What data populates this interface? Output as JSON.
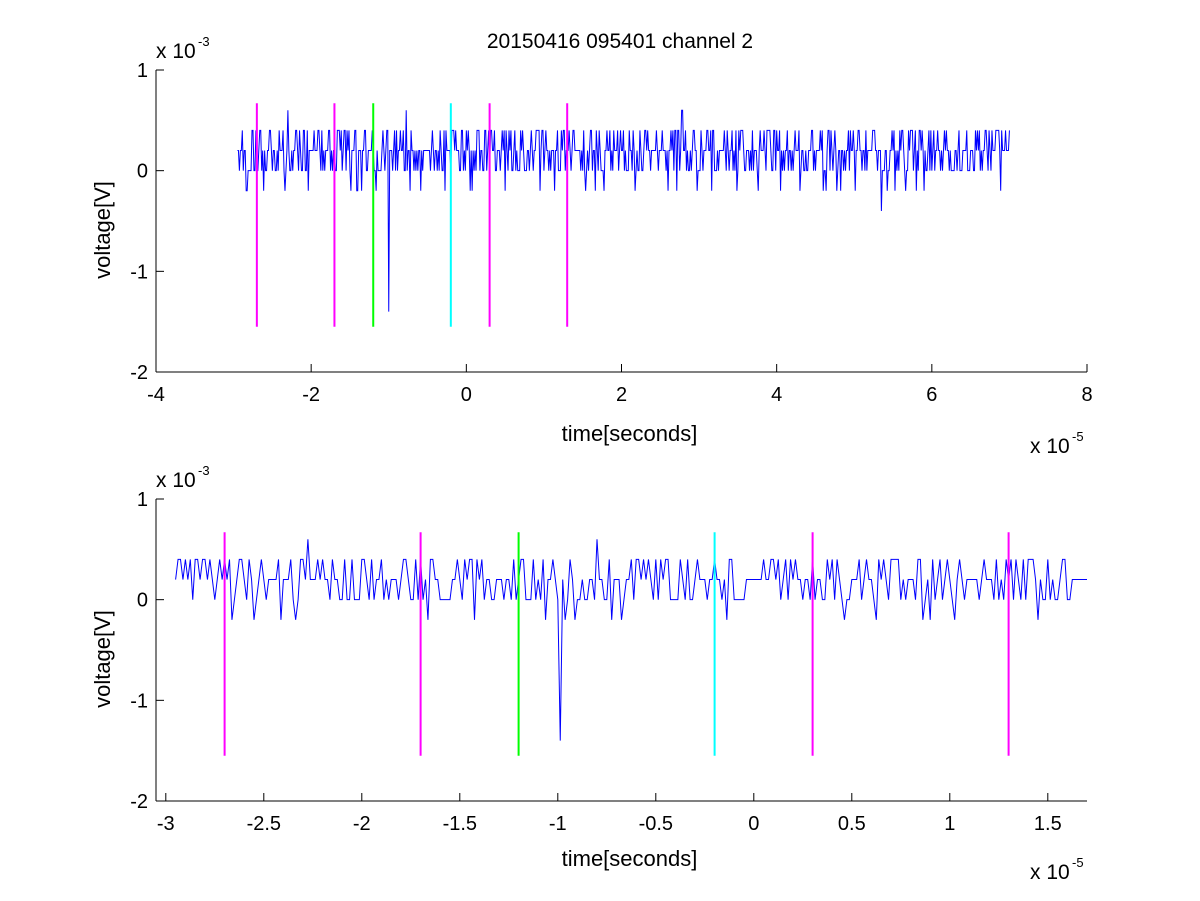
{
  "figure": {
    "title": "20150416 095401 channel 2",
    "colors": {
      "signal": "#0000ff",
      "magenta": "#ff00ff",
      "green": "#00ff00",
      "cyan": "#00ffff",
      "axes": "#000000"
    }
  },
  "chart_data": [
    {
      "type": "line",
      "title": "20150416 095401 channel 2",
      "xlabel": "time[seconds]",
      "ylabel": "voltage[V]",
      "x_multiplier_label": "x 10",
      "x_multiplier_exponent": "-5",
      "y_multiplier_label": "x 10",
      "y_multiplier_exponent": "-3",
      "xlim": [
        -4,
        8
      ],
      "ylim": [
        -2,
        1
      ],
      "xticks": [
        -4,
        -2,
        0,
        2,
        4,
        6,
        8
      ],
      "xtick_labels": [
        "-4",
        "-2",
        "0",
        "2",
        "4",
        "6",
        "8"
      ],
      "yticks": [
        -2,
        -1,
        0,
        1
      ],
      "ytick_labels": [
        "-2",
        "-1",
        "0",
        "1"
      ],
      "grid": false,
      "signal": {
        "x_range": [
          -2.95,
          7.0
        ],
        "levels": [
          -0.2,
          0,
          0.2,
          0.4
        ],
        "spikes": [
          {
            "x": -1.0,
            "y": -1.4
          },
          {
            "x": -0.78,
            "y": 0.6
          },
          {
            "x": -2.3,
            "y": 0.6
          },
          {
            "x": 2.78,
            "y": 0.6
          },
          {
            "x": 5.35,
            "y": -0.4
          }
        ]
      },
      "vlines": [
        {
          "x": -2.7,
          "y": [
            -1.55,
            0.67
          ],
          "color": "#ff00ff"
        },
        {
          "x": -1.7,
          "y": [
            -1.55,
            0.67
          ],
          "color": "#ff00ff"
        },
        {
          "x": -1.2,
          "y": [
            -1.55,
            0.67
          ],
          "color": "#00ff00"
        },
        {
          "x": -0.2,
          "y": [
            -1.55,
            0.67
          ],
          "color": "#00ffff"
        },
        {
          "x": 0.3,
          "y": [
            -1.55,
            0.67
          ],
          "color": "#ff00ff"
        },
        {
          "x": 1.3,
          "y": [
            -1.55,
            0.67
          ],
          "color": "#ff00ff"
        }
      ]
    },
    {
      "type": "line",
      "title": "",
      "xlabel": "time[seconds]",
      "ylabel": "voltage[V]",
      "x_multiplier_label": "x 10",
      "x_multiplier_exponent": "-5",
      "y_multiplier_label": "x 10",
      "y_multiplier_exponent": "-3",
      "xlim": [
        -3.05,
        1.7
      ],
      "ylim": [
        -2,
        1
      ],
      "xticks": [
        -3,
        -2.5,
        -2,
        -1.5,
        -1,
        -0.5,
        0,
        0.5,
        1,
        1.5
      ],
      "xtick_labels": [
        "-3",
        "-2.5",
        "-2",
        "-1.5",
        "-1",
        "-0.5",
        "0",
        "0.5",
        "1",
        "1.5"
      ],
      "yticks": [
        -2,
        -1,
        0,
        1
      ],
      "ytick_labels": [
        "-2",
        "-1",
        "0",
        "1"
      ],
      "grid": false,
      "signal": {
        "x_range": [
          -2.95,
          1.7
        ],
        "levels": [
          -0.2,
          0,
          0.2,
          0.4
        ],
        "spikes": [
          {
            "x": -0.99,
            "y": -1.4
          },
          {
            "x": -0.8,
            "y": 0.6
          },
          {
            "x": -2.28,
            "y": 0.6
          }
        ]
      },
      "vlines": [
        {
          "x": -2.7,
          "y": [
            -1.55,
            0.67
          ],
          "color": "#ff00ff"
        },
        {
          "x": -1.7,
          "y": [
            -1.55,
            0.67
          ],
          "color": "#ff00ff"
        },
        {
          "x": -1.2,
          "y": [
            -1.55,
            0.67
          ],
          "color": "#00ff00"
        },
        {
          "x": -0.2,
          "y": [
            -1.55,
            0.67
          ],
          "color": "#00ffff"
        },
        {
          "x": 0.3,
          "y": [
            -1.55,
            0.67
          ],
          "color": "#ff00ff"
        },
        {
          "x": 1.3,
          "y": [
            -1.55,
            0.67
          ],
          "color": "#ff00ff"
        }
      ]
    }
  ]
}
